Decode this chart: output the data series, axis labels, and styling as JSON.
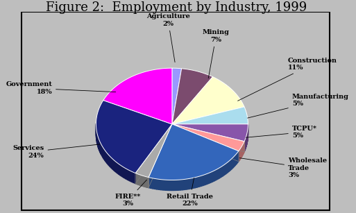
{
  "title": "Figure 2:  Employment by Industry, 1999",
  "labels": [
    "Agriculture",
    "Mining",
    "Construction",
    "Manufacturing",
    "TCPU*",
    "Wholesale\nTrade",
    "Retail Trade",
    "FIRE**",
    "Services",
    "Government"
  ],
  "values": [
    2,
    7,
    11,
    5,
    5,
    3,
    22,
    3,
    24,
    18
  ],
  "colors": [
    "#9999FF",
    "#7B4B6E",
    "#FFFFCC",
    "#AADDEE",
    "#8855AA",
    "#FF9999",
    "#3366BB",
    "#AAAAAA",
    "#1A237E",
    "#FF00FF"
  ],
  "label_texts": [
    "Agriculture\n2%",
    "Mining\n7%",
    "Construction\n11%",
    "Manufacturing\n5%",
    "TCPU*\n5%",
    "Wholesale\nTrade\n3%",
    "Retail Trade\n22%",
    "FIRE**\n3%",
    "Services\n24%",
    "Government\n18%"
  ],
  "background_color": "#BEBEBE",
  "title_fontsize": 13,
  "fig_width": 5.13,
  "fig_height": 3.07
}
